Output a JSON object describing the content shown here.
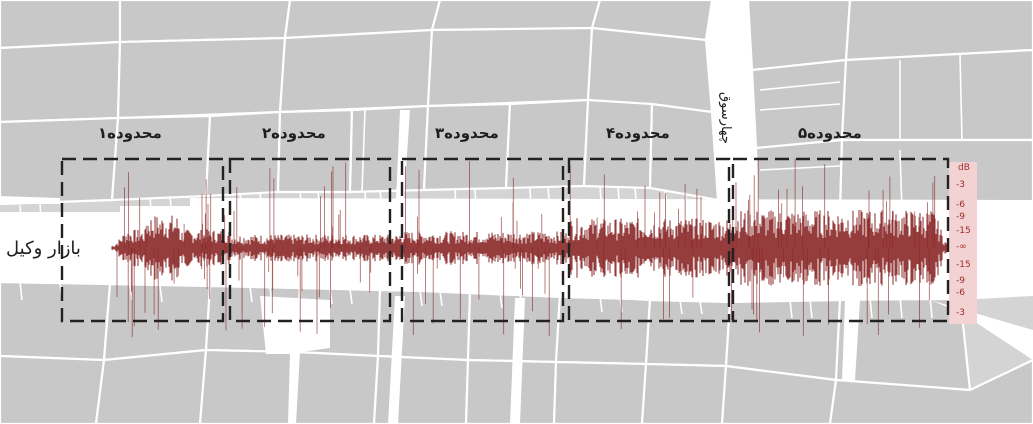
{
  "zones": [
    {
      "label": "محدوده۱"
    },
    {
      "label": "محدوده۲"
    },
    {
      "label": "محدوده۳"
    },
    {
      "label": "محدوده۴"
    },
    {
      "label": "محدوده۵"
    }
  ],
  "street_label": "بازار وکیل",
  "side_street_label": "چهارسوق",
  "db_scale": {
    "unit": "dB",
    "ticks": [
      "-3",
      "-6",
      "-9",
      "-15",
      "-∞",
      "-15",
      "-9",
      "-6",
      "-3"
    ]
  },
  "waveform": {
    "zone_amplitudes": [
      0.3,
      0.22,
      0.27,
      0.48,
      0.62
    ]
  },
  "colors": {
    "map_background": "#d4d4d4",
    "parcel_fill": "#c7c7c7",
    "parcel_lines": "#ffffff",
    "street": "#ffffff",
    "waveform": "#8a2828",
    "zone_border": "#222222",
    "db_panel": "#f2d2d2",
    "db_text": "#a12d2d"
  }
}
